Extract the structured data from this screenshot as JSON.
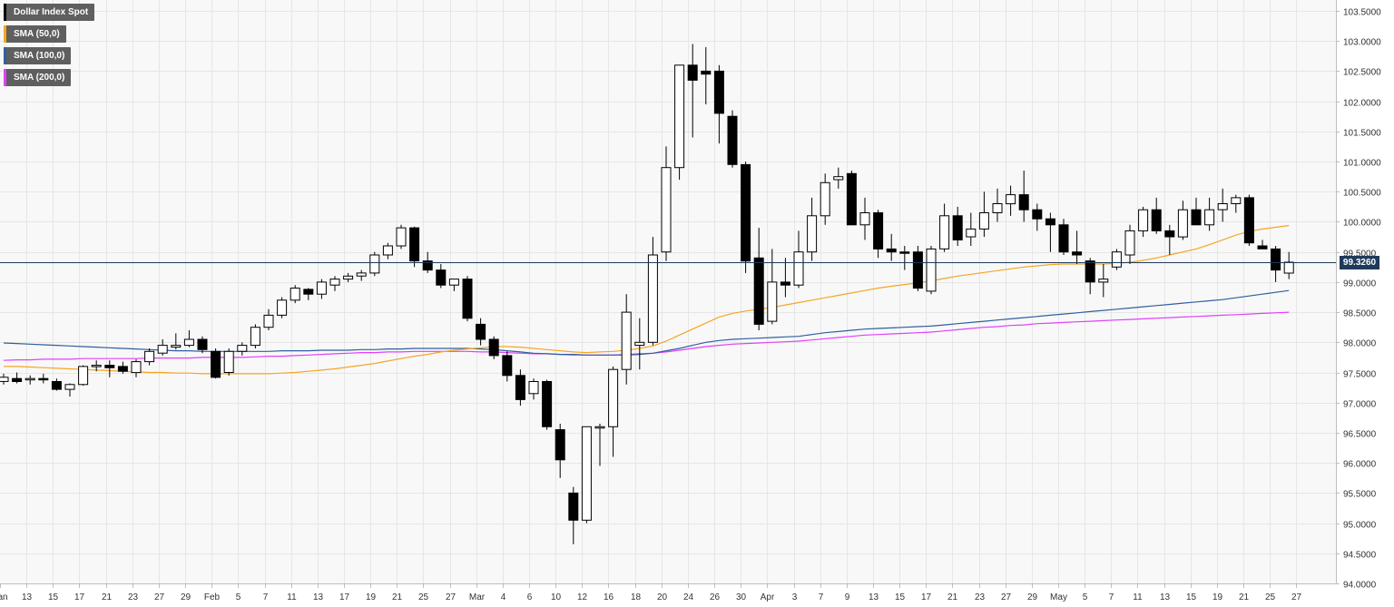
{
  "legend": [
    {
      "label": "Dollar Index Spot",
      "color": "#000000"
    },
    {
      "label": "SMA (50,0)",
      "color": "#f5a623"
    },
    {
      "label": "SMA (100,0)",
      "color": "#2f5f9e"
    },
    {
      "label": "SMA (200,0)",
      "color": "#e040fb"
    }
  ],
  "current_price": "99.3260",
  "colors": {
    "up_fill": "#ffffff",
    "down_fill": "#000000",
    "candle_stroke": "#000000",
    "grid": "#e6e6e6",
    "background": "#f8f8f8",
    "price_line": "#1f3a5a",
    "sma50": "#f5a623",
    "sma100": "#2f5f9e",
    "sma200": "#e040fb"
  },
  "chart_data": {
    "type": "candlestick",
    "ylim": [
      94.0,
      103.5
    ],
    "y_ticks": [
      "94.0000",
      "94.5000",
      "95.0000",
      "95.5000",
      "96.0000",
      "96.5000",
      "97.0000",
      "97.5000",
      "98.0000",
      "98.5000",
      "99.0000",
      "99.5000",
      "100.0000",
      "100.5000",
      "101.0000",
      "101.5000",
      "102.0000",
      "102.5000",
      "103.0000",
      "103.5000"
    ],
    "x_ticks": [
      "Jan",
      "13",
      "15",
      "17",
      "21",
      "23",
      "27",
      "29",
      "Feb",
      "5",
      "7",
      "11",
      "13",
      "17",
      "19",
      "21",
      "25",
      "27",
      "Mar",
      "4",
      "6",
      "10",
      "12",
      "16",
      "18",
      "20",
      "24",
      "26",
      "30",
      "Apr",
      "3",
      "7",
      "9",
      "13",
      "15",
      "17",
      "21",
      "23",
      "27",
      "29",
      "May",
      "5",
      "7",
      "11",
      "13",
      "15",
      "19",
      "21",
      "25",
      "27"
    ],
    "candles": [
      {
        "o": 97.35,
        "h": 97.48,
        "l": 97.3,
        "c": 97.42
      },
      {
        "o": 97.4,
        "h": 97.5,
        "l": 97.32,
        "c": 97.35
      },
      {
        "o": 97.38,
        "h": 97.45,
        "l": 97.3,
        "c": 97.4
      },
      {
        "o": 97.4,
        "h": 97.48,
        "l": 97.32,
        "c": 97.38
      },
      {
        "o": 97.35,
        "h": 97.4,
        "l": 97.2,
        "c": 97.22
      },
      {
        "o": 97.22,
        "h": 97.32,
        "l": 97.1,
        "c": 97.3
      },
      {
        "o": 97.3,
        "h": 97.62,
        "l": 97.28,
        "c": 97.6
      },
      {
        "o": 97.6,
        "h": 97.7,
        "l": 97.52,
        "c": 97.62
      },
      {
        "o": 97.62,
        "h": 97.7,
        "l": 97.42,
        "c": 97.58
      },
      {
        "o": 97.6,
        "h": 97.68,
        "l": 97.48,
        "c": 97.52
      },
      {
        "o": 97.5,
        "h": 97.72,
        "l": 97.42,
        "c": 97.68
      },
      {
        "o": 97.68,
        "h": 97.9,
        "l": 97.62,
        "c": 97.85
      },
      {
        "o": 97.82,
        "h": 98.05,
        "l": 97.78,
        "c": 97.95
      },
      {
        "o": 97.92,
        "h": 98.15,
        "l": 97.88,
        "c": 97.95
      },
      {
        "o": 97.95,
        "h": 98.2,
        "l": 97.92,
        "c": 98.05
      },
      {
        "o": 98.05,
        "h": 98.1,
        "l": 97.82,
        "c": 97.88
      },
      {
        "o": 97.85,
        "h": 97.9,
        "l": 97.4,
        "c": 97.42
      },
      {
        "o": 97.5,
        "h": 97.9,
        "l": 97.45,
        "c": 97.85
      },
      {
        "o": 97.85,
        "h": 98.0,
        "l": 97.78,
        "c": 97.95
      },
      {
        "o": 97.95,
        "h": 98.3,
        "l": 97.9,
        "c": 98.25
      },
      {
        "o": 98.25,
        "h": 98.55,
        "l": 98.2,
        "c": 98.45
      },
      {
        "o": 98.45,
        "h": 98.75,
        "l": 98.4,
        "c": 98.7
      },
      {
        "o": 98.7,
        "h": 98.95,
        "l": 98.65,
        "c": 98.9
      },
      {
        "o": 98.88,
        "h": 98.9,
        "l": 98.7,
        "c": 98.8
      },
      {
        "o": 98.8,
        "h": 99.05,
        "l": 98.72,
        "c": 99.0
      },
      {
        "o": 98.95,
        "h": 99.1,
        "l": 98.85,
        "c": 99.05
      },
      {
        "o": 99.05,
        "h": 99.15,
        "l": 99.0,
        "c": 99.1
      },
      {
        "o": 99.1,
        "h": 99.2,
        "l": 99.02,
        "c": 99.15
      },
      {
        "o": 99.15,
        "h": 99.5,
        "l": 99.1,
        "c": 99.45
      },
      {
        "o": 99.45,
        "h": 99.65,
        "l": 99.38,
        "c": 99.6
      },
      {
        "o": 99.6,
        "h": 99.95,
        "l": 99.55,
        "c": 99.9
      },
      {
        "o": 99.9,
        "h": 99.92,
        "l": 99.25,
        "c": 99.35
      },
      {
        "o": 99.35,
        "h": 99.5,
        "l": 99.15,
        "c": 99.2
      },
      {
        "o": 99.2,
        "h": 99.3,
        "l": 98.9,
        "c": 98.95
      },
      {
        "o": 98.95,
        "h": 99.05,
        "l": 98.85,
        "c": 99.05
      },
      {
        "o": 99.05,
        "h": 99.1,
        "l": 98.35,
        "c": 98.4
      },
      {
        "o": 98.3,
        "h": 98.4,
        "l": 97.95,
        "c": 98.05
      },
      {
        "o": 98.05,
        "h": 98.1,
        "l": 97.72,
        "c": 97.78
      },
      {
        "o": 97.78,
        "h": 97.85,
        "l": 97.35,
        "c": 97.45
      },
      {
        "o": 97.45,
        "h": 97.55,
        "l": 96.95,
        "c": 97.05
      },
      {
        "o": 97.15,
        "h": 97.4,
        "l": 97.05,
        "c": 97.35
      },
      {
        "o": 97.35,
        "h": 97.38,
        "l": 96.55,
        "c": 96.6
      },
      {
        "o": 96.55,
        "h": 96.65,
        "l": 95.75,
        "c": 96.05
      },
      {
        "o": 95.5,
        "h": 95.6,
        "l": 94.65,
        "c": 95.05
      },
      {
        "o": 95.05,
        "h": 96.6,
        "l": 95.0,
        "c": 96.6
      },
      {
        "o": 96.6,
        "h": 96.65,
        "l": 95.95,
        "c": 96.6
      },
      {
        "o": 96.6,
        "h": 97.6,
        "l": 96.1,
        "c": 97.55
      },
      {
        "o": 97.55,
        "h": 98.8,
        "l": 97.3,
        "c": 98.5
      },
      {
        "o": 97.95,
        "h": 98.4,
        "l": 97.55,
        "c": 98.0
      },
      {
        "o": 98.0,
        "h": 99.75,
        "l": 97.95,
        "c": 99.45
      },
      {
        "o": 99.5,
        "h": 101.25,
        "l": 99.35,
        "c": 100.9
      },
      {
        "o": 100.9,
        "h": 102.6,
        "l": 100.7,
        "c": 102.6
      },
      {
        "o": 102.6,
        "h": 102.95,
        "l": 101.4,
        "c": 102.35
      },
      {
        "o": 102.5,
        "h": 102.9,
        "l": 101.95,
        "c": 102.45
      },
      {
        "o": 102.5,
        "h": 102.6,
        "l": 101.3,
        "c": 101.8
      },
      {
        "o": 101.75,
        "h": 101.85,
        "l": 100.9,
        "c": 100.95
      },
      {
        "o": 100.95,
        "h": 101.0,
        "l": 99.15,
        "c": 99.35
      },
      {
        "o": 99.4,
        "h": 99.9,
        "l": 98.2,
        "c": 98.3
      },
      {
        "o": 98.35,
        "h": 99.55,
        "l": 98.3,
        "c": 99.0
      },
      {
        "o": 99.0,
        "h": 99.4,
        "l": 98.75,
        "c": 98.95
      },
      {
        "o": 98.95,
        "h": 99.85,
        "l": 98.9,
        "c": 99.5
      },
      {
        "o": 99.5,
        "h": 100.4,
        "l": 99.35,
        "c": 100.1
      },
      {
        "o": 100.1,
        "h": 100.8,
        "l": 99.95,
        "c": 100.65
      },
      {
        "o": 100.7,
        "h": 100.9,
        "l": 100.55,
        "c": 100.75
      },
      {
        "o": 100.8,
        "h": 100.85,
        "l": 99.95,
        "c": 99.95
      },
      {
        "o": 99.95,
        "h": 100.4,
        "l": 99.7,
        "c": 100.15
      },
      {
        "o": 100.15,
        "h": 100.2,
        "l": 99.4,
        "c": 99.55
      },
      {
        "o": 99.55,
        "h": 99.8,
        "l": 99.35,
        "c": 99.5
      },
      {
        "o": 99.5,
        "h": 99.6,
        "l": 99.2,
        "c": 99.48
      },
      {
        "o": 99.5,
        "h": 99.6,
        "l": 98.85,
        "c": 98.9
      },
      {
        "o": 98.85,
        "h": 99.6,
        "l": 98.8,
        "c": 99.55
      },
      {
        "o": 99.55,
        "h": 100.3,
        "l": 99.5,
        "c": 100.1
      },
      {
        "o": 100.1,
        "h": 100.25,
        "l": 99.6,
        "c": 99.7
      },
      {
        "o": 99.75,
        "h": 100.15,
        "l": 99.6,
        "c": 99.88
      },
      {
        "o": 99.88,
        "h": 100.5,
        "l": 99.75,
        "c": 100.15
      },
      {
        "o": 100.15,
        "h": 100.55,
        "l": 100.0,
        "c": 100.3
      },
      {
        "o": 100.3,
        "h": 100.6,
        "l": 100.1,
        "c": 100.45
      },
      {
        "o": 100.45,
        "h": 100.85,
        "l": 100.0,
        "c": 100.2
      },
      {
        "o": 100.2,
        "h": 100.3,
        "l": 99.85,
        "c": 100.05
      },
      {
        "o": 100.05,
        "h": 100.15,
        "l": 99.5,
        "c": 99.95
      },
      {
        "o": 99.95,
        "h": 100.05,
        "l": 99.45,
        "c": 99.5
      },
      {
        "o": 99.5,
        "h": 99.85,
        "l": 99.3,
        "c": 99.45
      },
      {
        "o": 99.35,
        "h": 99.4,
        "l": 98.8,
        "c": 99.0
      },
      {
        "o": 99.0,
        "h": 99.3,
        "l": 98.75,
        "c": 99.05
      },
      {
        "o": 99.25,
        "h": 99.55,
        "l": 99.2,
        "c": 99.5
      },
      {
        "o": 99.45,
        "h": 99.95,
        "l": 99.3,
        "c": 99.85
      },
      {
        "o": 99.85,
        "h": 100.25,
        "l": 99.75,
        "c": 100.2
      },
      {
        "o": 100.2,
        "h": 100.4,
        "l": 99.8,
        "c": 99.85
      },
      {
        "o": 99.85,
        "h": 99.95,
        "l": 99.45,
        "c": 99.75
      },
      {
        "o": 99.75,
        "h": 100.35,
        "l": 99.7,
        "c": 100.2
      },
      {
        "o": 100.2,
        "h": 100.4,
        "l": 99.95,
        "c": 99.95
      },
      {
        "o": 99.95,
        "h": 100.4,
        "l": 99.85,
        "c": 100.2
      },
      {
        "o": 100.2,
        "h": 100.55,
        "l": 100.0,
        "c": 100.3
      },
      {
        "o": 100.3,
        "h": 100.45,
        "l": 100.15,
        "c": 100.4
      },
      {
        "o": 100.4,
        "h": 100.45,
        "l": 99.6,
        "c": 99.65
      },
      {
        "o": 99.6,
        "h": 99.7,
        "l": 99.55,
        "c": 99.55
      },
      {
        "o": 99.55,
        "h": 99.6,
        "l": 99.0,
        "c": 99.2
      },
      {
        "o": 99.15,
        "h": 99.5,
        "l": 99.05,
        "c": 99.33
      }
    ],
    "sma50": [
      97.6,
      97.6,
      97.59,
      97.58,
      97.57,
      97.56,
      97.55,
      97.54,
      97.53,
      97.52,
      97.51,
      97.5,
      97.5,
      97.49,
      97.49,
      97.48,
      97.48,
      97.48,
      97.48,
      97.48,
      97.48,
      97.49,
      97.5,
      97.52,
      97.54,
      97.56,
      97.59,
      97.62,
      97.65,
      97.69,
      97.73,
      97.77,
      97.8,
      97.84,
      97.87,
      97.89,
      97.91,
      97.93,
      97.93,
      97.92,
      97.9,
      97.88,
      97.86,
      97.84,
      97.83,
      97.84,
      97.85,
      97.87,
      97.9,
      97.94,
      98.02,
      98.12,
      98.22,
      98.32,
      98.42,
      98.48,
      98.52,
      98.55,
      98.58,
      98.62,
      98.66,
      98.7,
      98.74,
      98.78,
      98.82,
      98.86,
      98.9,
      98.93,
      98.96,
      98.99,
      99.02,
      99.06,
      99.1,
      99.13,
      99.16,
      99.19,
      99.22,
      99.25,
      99.27,
      99.29,
      99.3,
      99.3,
      99.3,
      99.3,
      99.31,
      99.33,
      99.36,
      99.4,
      99.45,
      99.5,
      99.55,
      99.62,
      99.7,
      99.78,
      99.84,
      99.88,
      99.91,
      99.94
    ],
    "sma100": [
      97.99,
      97.98,
      97.97,
      97.96,
      97.95,
      97.94,
      97.93,
      97.92,
      97.91,
      97.9,
      97.89,
      97.88,
      97.87,
      97.86,
      97.86,
      97.85,
      97.85,
      97.85,
      97.85,
      97.85,
      97.85,
      97.86,
      97.86,
      97.86,
      97.87,
      97.87,
      97.87,
      97.88,
      97.88,
      97.89,
      97.89,
      97.9,
      97.9,
      97.9,
      97.9,
      97.9,
      97.89,
      97.88,
      97.86,
      97.84,
      97.82,
      97.81,
      97.8,
      97.8,
      97.79,
      97.79,
      97.79,
      97.79,
      97.8,
      97.82,
      97.86,
      97.9,
      97.95,
      98.0,
      98.03,
      98.05,
      98.06,
      98.07,
      98.08,
      98.09,
      98.1,
      98.13,
      98.16,
      98.18,
      98.2,
      98.22,
      98.23,
      98.24,
      98.25,
      98.26,
      98.27,
      98.29,
      98.31,
      98.33,
      98.35,
      98.37,
      98.39,
      98.41,
      98.43,
      98.45,
      98.47,
      98.49,
      98.51,
      98.53,
      98.55,
      98.57,
      98.59,
      98.61,
      98.63,
      98.65,
      98.67,
      98.69,
      98.71,
      98.74,
      98.77,
      98.8,
      98.83,
      98.86
    ],
    "sma200": [
      97.7,
      97.71,
      97.71,
      97.72,
      97.72,
      97.72,
      97.73,
      97.73,
      97.73,
      97.73,
      97.73,
      97.74,
      97.74,
      97.74,
      97.74,
      97.75,
      97.75,
      97.75,
      97.75,
      97.76,
      97.77,
      97.77,
      97.78,
      97.79,
      97.8,
      97.81,
      97.82,
      97.83,
      97.83,
      97.84,
      97.84,
      97.85,
      97.85,
      97.85,
      97.85,
      97.85,
      97.84,
      97.84,
      97.83,
      97.82,
      97.81,
      97.81,
      97.8,
      97.79,
      97.79,
      97.79,
      97.79,
      97.8,
      97.81,
      97.82,
      97.84,
      97.87,
      97.9,
      97.93,
      97.95,
      97.97,
      97.98,
      97.99,
      98.0,
      98.01,
      98.02,
      98.04,
      98.06,
      98.08,
      98.1,
      98.12,
      98.13,
      98.14,
      98.15,
      98.16,
      98.17,
      98.19,
      98.21,
      98.23,
      98.25,
      98.26,
      98.28,
      98.29,
      98.31,
      98.32,
      98.33,
      98.34,
      98.35,
      98.36,
      98.37,
      98.38,
      98.39,
      98.4,
      98.41,
      98.42,
      98.43,
      98.44,
      98.45,
      98.46,
      98.47,
      98.48,
      98.49,
      98.5
    ],
    "last_price": 99.326
  }
}
